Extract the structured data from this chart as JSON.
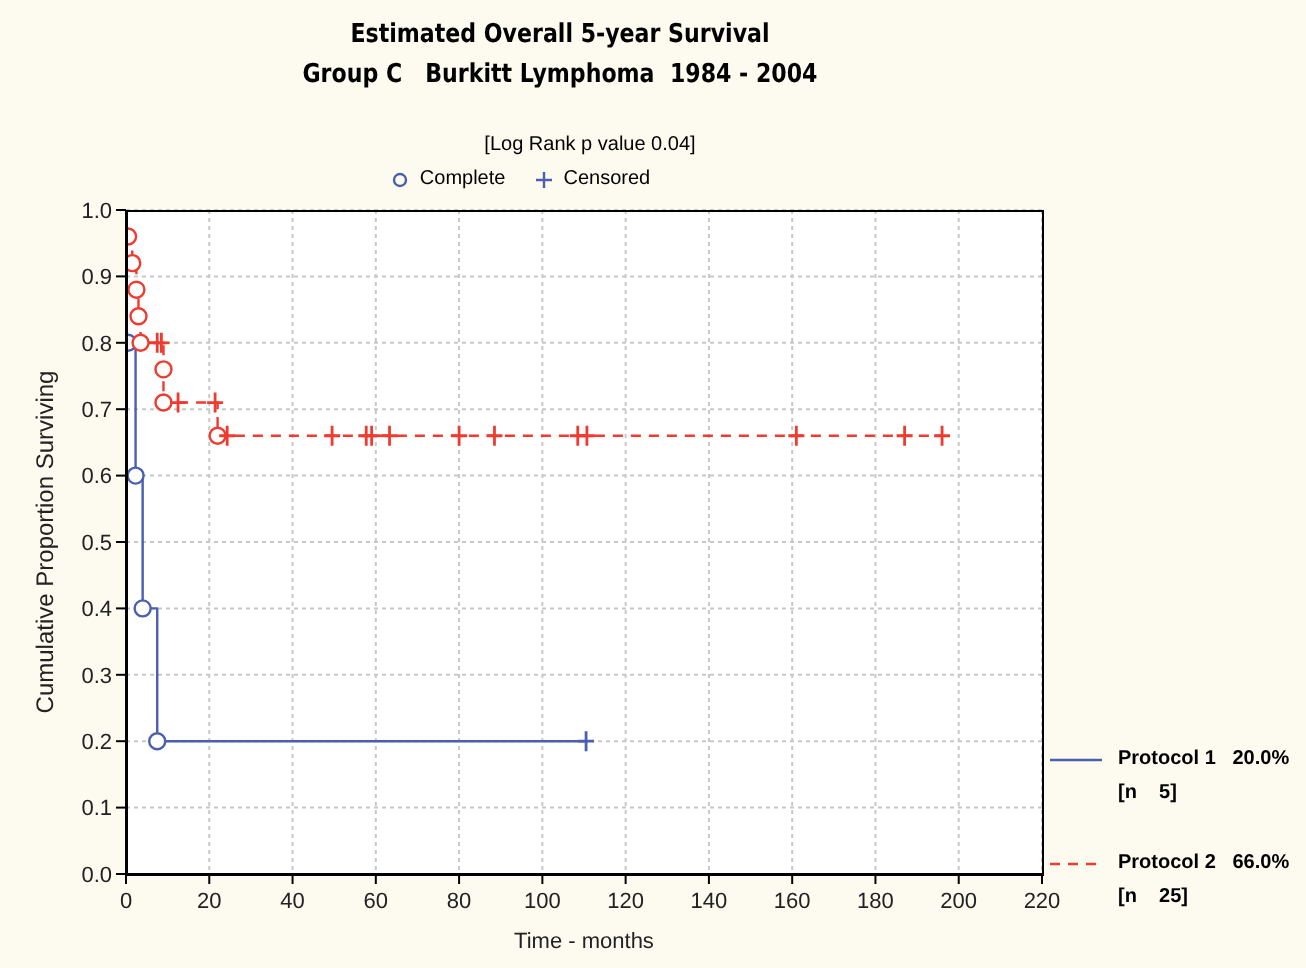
{
  "chart_data": {
    "type": "step",
    "title": "Estimated Overall 5-year Survival",
    "subtitle": "Group C   Burkitt Lymphoma  1984 - 2004",
    "annotations": [
      "[Log Rank p value 0.04]"
    ],
    "xlabel": "Time - months",
    "ylabel": "Cumulative Proportion Surviving",
    "xlim": [
      0,
      220
    ],
    "xticks": [
      0,
      20,
      40,
      60,
      80,
      100,
      120,
      140,
      160,
      180,
      200,
      220
    ],
    "ylim": [
      0,
      1
    ],
    "yticks": [
      {
        "value": 0,
        "label": "0.0"
      },
      {
        "value": 0.1,
        "label": "0.1"
      },
      {
        "value": 0.2,
        "label": "0.2"
      },
      {
        "value": 0.3,
        "label": "0.3"
      },
      {
        "value": 0.4,
        "label": "0.4"
      },
      {
        "value": 0.5,
        "label": "0.5"
      },
      {
        "value": 0.6,
        "label": "0.6"
      },
      {
        "value": 0.7,
        "label": "0.7"
      },
      {
        "value": 0.8,
        "label": "0.8"
      },
      {
        "value": 0.9,
        "label": "0.9"
      },
      {
        "value": 1,
        "label": "1.0"
      }
    ],
    "grid": true,
    "legend": "right",
    "series": [
      {
        "name": "Protocol 1   20.0%\n[n    5]",
        "color": "#4a5fb0",
        "line_style": "solid",
        "x": [
          0.5,
          2.3,
          4,
          7.5,
          110.5
        ],
        "values": [
          0.8,
          0.6,
          0.4,
          0.2,
          0.2
        ]
      },
      {
        "name": "Protocol 2   66.0%\n[n    25]",
        "color": "#f03a30",
        "line_style": "dashed",
        "x": [
          0.5,
          1.5,
          2.5,
          3,
          3.5,
          9,
          9,
          22,
          196
        ],
        "values": [
          0.96,
          0.92,
          0.88,
          0.84,
          0.8,
          0.76,
          0.71,
          0.66,
          0.66
        ]
      },
      {
        "type": "scatter",
        "name": "Complete",
        "color": "#4a5fb0",
        "marker": "circle",
        "x": [
          0.5,
          2.3,
          4,
          7.5
        ],
        "values": [
          0.8,
          0.6,
          0.4,
          0.2
        ]
      },
      {
        "type": "scatter",
        "name": "Censored",
        "color": "#4a5fb0",
        "marker": "cross",
        "x": [
          110.5
        ],
        "values": [
          0.2
        ]
      },
      {
        "type": "scatter",
        "color": "#f03a30",
        "marker": "circle",
        "x": [
          0.5,
          1.5,
          2.5,
          3,
          3.5,
          9,
          9,
          22
        ],
        "values": [
          0.96,
          0.92,
          0.88,
          0.84,
          0.8,
          0.76,
          0.71,
          0.66
        ]
      },
      {
        "type": "scatter",
        "color": "#f03a30",
        "marker": "cross",
        "x": [
          7.5,
          8.5,
          12.5,
          21.4,
          24.3,
          49.5,
          57.7,
          59,
          63.3,
          80,
          88.5,
          108.5,
          110.7,
          161,
          187,
          196
        ],
        "values": [
          0.8,
          0.8,
          0.71,
          0.71,
          0.66,
          0.66,
          0.66,
          0.66,
          0.66,
          0.66,
          0.66,
          0.66,
          0.66,
          0.66,
          0.66,
          0.66
        ]
      }
    ]
  }
}
